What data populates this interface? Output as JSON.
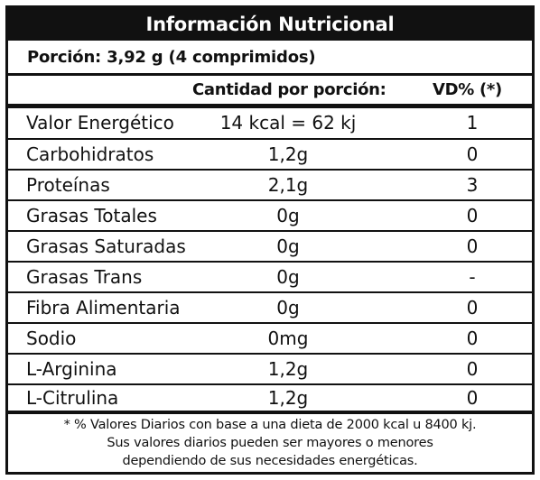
{
  "title": "Información Nutricional",
  "portion": "Porción: 3,92 g (4 comprimidos)",
  "headers": {
    "amount": "Cantidad por porción:",
    "vd": "VD% (*)"
  },
  "rows": [
    {
      "name": "Valor Energético",
      "amount": "14 kcal = 62 kj",
      "vd": "1"
    },
    {
      "name": "Carbohidratos",
      "amount": "1,2g",
      "vd": "0"
    },
    {
      "name": "Proteínas",
      "amount": "2,1g",
      "vd": "3"
    },
    {
      "name": "Grasas Totales",
      "amount": "0g",
      "vd": "0"
    },
    {
      "name": "Grasas Saturadas",
      "amount": "0g",
      "vd": "0"
    },
    {
      "name": "Grasas Trans",
      "amount": "0g",
      "vd": "-"
    },
    {
      "name": "Fibra Alimentaria",
      "amount": "0g",
      "vd": "0"
    },
    {
      "name": "Sodio",
      "amount": "0mg",
      "vd": "0"
    },
    {
      "name": "L-Arginina",
      "amount": "1,2g",
      "vd": "0"
    },
    {
      "name": "L-Citrulina",
      "amount": "1,2g",
      "vd": "0"
    }
  ],
  "footnote": [
    "* % Valores Diarios con base a una dieta de 2000 kcal u 8400 kj.",
    "Sus valores diarios pueden ser mayores o menores",
    "dependiendo de sus necesidades energéticas."
  ],
  "colors": {
    "ink": "#111111",
    "background": "#ffffff",
    "title_text": "#ffffff"
  }
}
